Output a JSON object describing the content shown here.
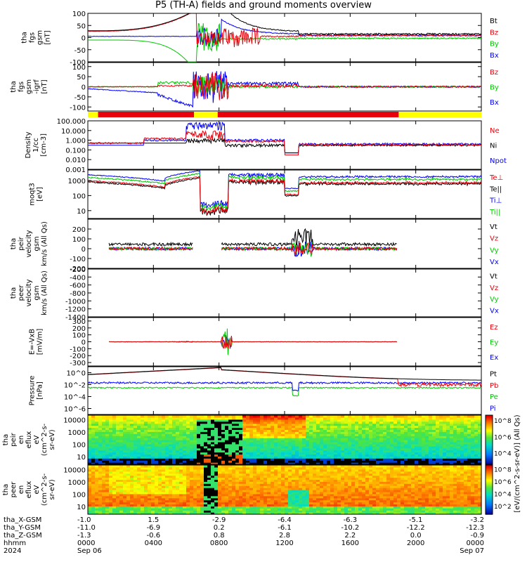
{
  "title": "P5 (TH-A) fields and ground moments overview",
  "colors": {
    "black": "#000000",
    "red": "#e8000b",
    "green": "#00c800",
    "blue": "#0000ff",
    "yellow": "#ffff00"
  },
  "chart_data": [
    {
      "type": "line",
      "name": "fgs",
      "ylabel": [
        "tha",
        "fgs",
        "gsm",
        "[nT]"
      ],
      "ylim": [
        -100,
        100
      ],
      "yticks": [
        -100,
        -50,
        0,
        50,
        100
      ],
      "legend": [
        {
          "label": "Bt",
          "color": "#000000"
        },
        {
          "label": "Bz",
          "color": "#e8000b"
        },
        {
          "label": "By",
          "color": "#00c800"
        },
        {
          "label": "Bx",
          "color": "#0000ff"
        }
      ]
    },
    {
      "type": "line",
      "name": "fgs-igrf",
      "ylabel": [
        "tha",
        "fgs",
        "gsm",
        "-igrf",
        "[nT]"
      ],
      "ylim": [
        -120,
        120
      ],
      "yticks": [
        -100,
        -50,
        0,
        50,
        100
      ],
      "legend": [
        {
          "label": "Bz",
          "color": "#e8000b"
        },
        {
          "label": "By",
          "color": "#00c800"
        },
        {
          "label": "Bx",
          "color": "#0000ff"
        }
      ]
    },
    {
      "type": "line",
      "name": "density",
      "ylabel": [
        "Density",
        "1/cc",
        "[cm-3]"
      ],
      "log": true,
      "ylim": [
        0.001,
        100
      ],
      "yticklabels": [
        "0.001",
        "0.010",
        "0.100",
        "1.000",
        "10.000",
        "100.000"
      ],
      "legend": [
        {
          "label": "Ne",
          "color": "#e8000b"
        },
        {
          "label": "Ni",
          "color": "#000000"
        },
        {
          "label": "Npot",
          "color": "#0000ff"
        }
      ]
    },
    {
      "type": "line",
      "name": "temperature",
      "ylabel": [
        "moqt3",
        "[eV]"
      ],
      "log": true,
      "ylim": [
        3,
        5000
      ],
      "yticklabels": [
        "10",
        "100",
        "1000"
      ],
      "legend": [
        {
          "label": "Te⊥",
          "color": "#e8000b"
        },
        {
          "label": "Te||",
          "color": "#000000"
        },
        {
          "label": "Ti⊥",
          "color": "#0000ff"
        },
        {
          "label": "Ti||",
          "color": "#00c800"
        }
      ]
    },
    {
      "type": "line",
      "name": "peir-velocity",
      "ylabel": [
        "tha",
        "peir",
        "velocity",
        "gsm",
        "km/s (All Qs)"
      ],
      "ylim": [
        -200,
        300
      ],
      "yticks": [
        -200,
        -100,
        0,
        100,
        200
      ],
      "legend": [
        {
          "label": "Vt",
          "color": "#000000"
        },
        {
          "label": "Vz",
          "color": "#e8000b"
        },
        {
          "label": "Vy",
          "color": "#00c800"
        },
        {
          "label": "Vx",
          "color": "#0000ff"
        }
      ]
    },
    {
      "type": "line",
      "name": "peer-velocity",
      "ylabel": [
        "tha",
        "peer",
        "velocity",
        "gsm",
        "km/s (All Qs)"
      ],
      "ylim": [
        -1400,
        -200
      ],
      "yticks": [
        -200,
        -400,
        -600,
        -800,
        -1000,
        -1200,
        -1400
      ],
      "legend": [
        {
          "label": "Vt",
          "color": "#000000"
        },
        {
          "label": "Vz",
          "color": "#e8000b"
        },
        {
          "label": "Vy",
          "color": "#00c800"
        },
        {
          "label": "Vx",
          "color": "#0000ff"
        }
      ]
    },
    {
      "type": "line",
      "name": "efield",
      "ylabel": [
        "E=-VxB",
        "[mV/m]"
      ],
      "ylim": [
        -350,
        350
      ],
      "yticks": [
        -300,
        -200,
        -100,
        0,
        100,
        200,
        300
      ],
      "legend": [
        {
          "label": "Ez",
          "color": "#e8000b"
        },
        {
          "label": "Ey",
          "color": "#00c800"
        },
        {
          "label": "Ex",
          "color": "#0000ff"
        }
      ]
    },
    {
      "type": "line",
      "name": "pressure",
      "ylabel": [
        "Pressure",
        "[nPa]"
      ],
      "log": true,
      "ylim": [
        1e-07,
        10
      ],
      "yticklabels": [
        "10^-6",
        "10^-4",
        "10^-2",
        "10^0"
      ],
      "legend": [
        {
          "label": "Pt",
          "color": "#000000"
        },
        {
          "label": "Pb",
          "color": "#e8000b"
        },
        {
          "label": "Pe",
          "color": "#00c800"
        },
        {
          "label": "Pi",
          "color": "#0000ff"
        }
      ]
    },
    {
      "type": "heatmap",
      "name": "peir-eflux",
      "ylabel": [
        "tha",
        "peir",
        "en",
        "eflux",
        "eV",
        "(cm^2-s-",
        "sr-eV)"
      ],
      "yticklabels": [
        "10",
        "100",
        "1000",
        "10000"
      ],
      "colorbar_label": "[eV/(cm^2-s-sr-eV)] (All Qs)",
      "colorbar_ticks": [
        "10^4",
        "10^6",
        "10^8"
      ]
    },
    {
      "type": "heatmap",
      "name": "peer-eflux",
      "ylabel": [
        "tha",
        "peer",
        "en",
        "eflux",
        "eV",
        "(cm^2-s-",
        "sr-eV)"
      ],
      "yticklabels": [
        "10",
        "100",
        "1000",
        "10000"
      ],
      "colorbar_label": "[eV/(cm^2-s-sr-eV)] (All Qs)",
      "colorbar_ticks": [
        "10^2",
        "10^4",
        "10^6",
        "10^8"
      ]
    }
  ],
  "footer": {
    "rows": [
      {
        "label": "tha_X-GSM",
        "values": [
          "-1.0",
          "1.5",
          "-2.9",
          "-6.4",
          "-6.3",
          "-5.1",
          "-3.2"
        ]
      },
      {
        "label": "tha_Y-GSM",
        "values": [
          "-11.0",
          "-6.9",
          "0.2",
          "-6.1",
          "-10.2",
          "-12.2",
          "-12.3"
        ]
      },
      {
        "label": "tha_Z-GSM",
        "values": [
          "-1.3",
          "-0.6",
          "0.8",
          "2.8",
          "2.2",
          "0.0",
          "-0.9"
        ]
      },
      {
        "label": "hhmm",
        "values": [
          "0000",
          "0400",
          "0800",
          "1200",
          "1600",
          "2000",
          "0000"
        ]
      },
      {
        "label": "2024",
        "values": [
          "Sep 06",
          "",
          "",
          "",
          "",
          "",
          "Sep 07"
        ]
      }
    ]
  }
}
